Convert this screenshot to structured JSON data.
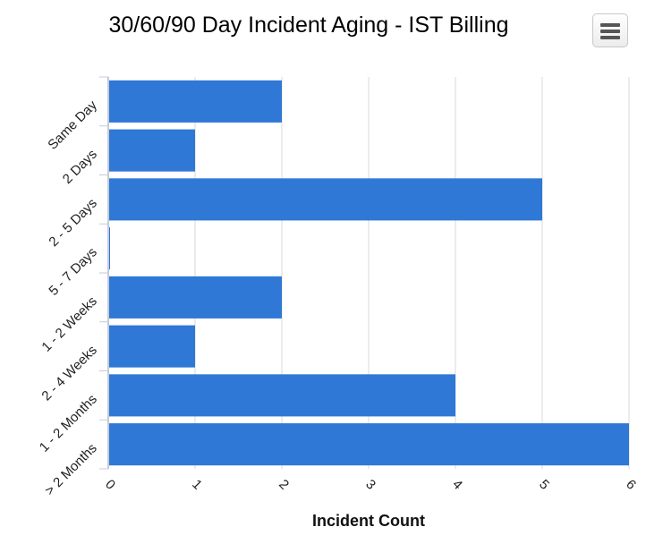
{
  "header": {
    "menu_icon": "hamburger-menu-icon"
  },
  "colors": {
    "bar": "#2f78d6",
    "grid": "#d9d9d9",
    "axis": "#c4cbd8"
  },
  "chart_data": {
    "type": "bar",
    "orientation": "horizontal",
    "title": "30/60/90 Day Incident Aging - IST Billing",
    "categories": [
      "Same Day",
      "2 Days",
      "2 - 5 Days",
      "5 - 7 Days",
      "1 - 2 Weeks",
      "2 - 4 Weeks",
      "1 - 2 Months",
      "> 2 Months"
    ],
    "values": [
      2,
      1,
      5,
      0,
      2,
      1,
      4,
      6
    ],
    "xlabel": "Incident Count",
    "ylabel": "",
    "xlim": [
      0,
      6
    ],
    "xticks": [
      "0",
      "1",
      "2",
      "3",
      "4",
      "5",
      "6"
    ],
    "grid": true,
    "legend": "none"
  }
}
